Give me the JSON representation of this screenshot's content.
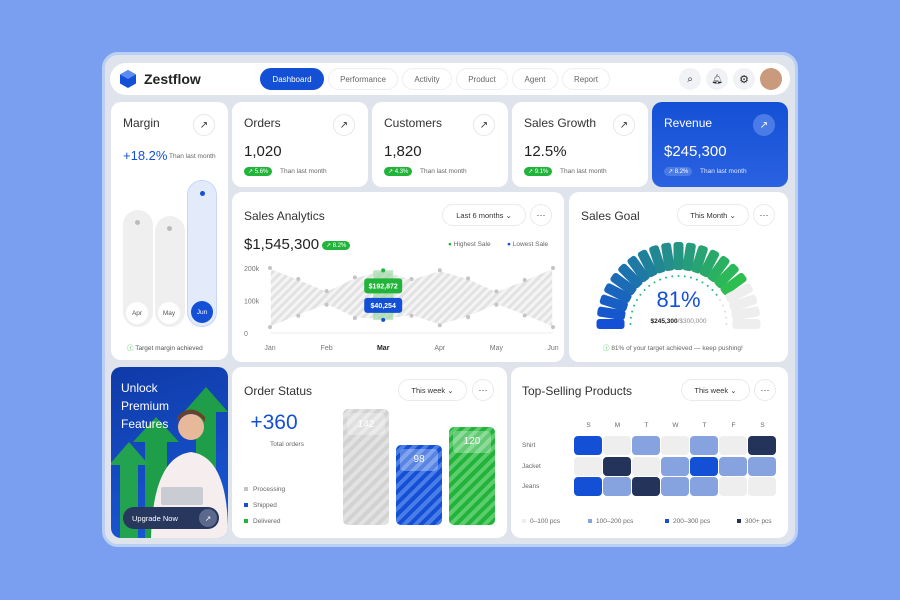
{
  "app": {
    "brand": "Zestflow"
  },
  "nav": {
    "tabs": [
      "Dashboard",
      "Performance",
      "Activity",
      "Product",
      "Agent",
      "Report"
    ],
    "active": "Dashboard"
  },
  "colors": {
    "accent": "#1450d6",
    "green": "#22b43a",
    "dark": "#23335a",
    "lightblue": "#86a3e0",
    "empty": "#eeeeee"
  },
  "margin": {
    "title": "Margin",
    "value": "+18.2%",
    "compare": "Than last month",
    "bars": [
      {
        "label": "Apr",
        "level": 0.78
      },
      {
        "label": "May",
        "level": 0.74
      },
      {
        "label": "Jun",
        "level": 0.98
      }
    ],
    "note": "Target margin achieved"
  },
  "kpis": [
    {
      "title": "Orders",
      "value": "1,020",
      "change": "5.6%",
      "compare": "Than last month"
    },
    {
      "title": "Customers",
      "value": "1,820",
      "change": "4.3%",
      "compare": "Than last month"
    },
    {
      "title": "Sales Growth",
      "value": "12.5%",
      "change": "9.1%",
      "compare": "Than last month"
    },
    {
      "title": "Revenue",
      "value": "$245,300",
      "change": "8.2%",
      "compare": "Than last month"
    }
  ],
  "sales_analytics": {
    "title": "Sales Analytics",
    "period": "Last 6 months",
    "total": "$1,545,300",
    "change": "8.2%",
    "legend": [
      "Highest Sale",
      "Lowest Sale"
    ],
    "y_ticks": [
      "200k",
      "100k",
      "0"
    ],
    "months": [
      "Jan",
      "Feb",
      "Mar",
      "Apr",
      "May",
      "Jun"
    ],
    "selected_month": "Mar",
    "highest_label": "$192,872",
    "lowest_label": "$40,254",
    "chart_data": {
      "type": "area",
      "ylim": [
        0,
        200000
      ],
      "x": [
        "Jan",
        "",
        "Feb",
        "",
        "Mar",
        "",
        "Apr",
        "",
        "May",
        "",
        "Jun"
      ],
      "high": [
        200000,
        166000,
        129000,
        171000,
        192872,
        166000,
        193000,
        168000,
        128000,
        163000,
        200000
      ],
      "low": [
        18000,
        53000,
        87000,
        46000,
        40254,
        53000,
        24000,
        49000,
        87000,
        54000,
        18000
      ]
    }
  },
  "sales_goal": {
    "title": "Sales Goal",
    "period": "This Month",
    "percent": "81%",
    "progress": 0.81,
    "achieved": "$245,300",
    "target": "/$300,000",
    "note": "81% of your target achieved — keep pushing!"
  },
  "promo": {
    "title_lines": [
      "Unlock",
      "Premium",
      "Features"
    ],
    "button": "Upgrade Now"
  },
  "order_status": {
    "title": "Order Status",
    "period": "This week",
    "total": "+360",
    "total_label": "Total orders",
    "legend": [
      "Processing",
      "Shipped",
      "Delivered"
    ],
    "bars": [
      142,
      98,
      120
    ]
  },
  "top_products": {
    "title": "Top-Selling Products",
    "period": "This week",
    "days": [
      "S",
      "M",
      "T",
      "W",
      "T",
      "F",
      "S"
    ],
    "rows": [
      {
        "name": "Shirt",
        "levels": [
          2,
          0,
          1,
          0,
          1,
          0,
          3
        ]
      },
      {
        "name": "Jacket",
        "levels": [
          0,
          3,
          0,
          1,
          2,
          1,
          1
        ]
      },
      {
        "name": "Jeans",
        "levels": [
          2,
          1,
          3,
          1,
          1,
          0,
          0
        ]
      }
    ],
    "legend": [
      "0–100 pcs",
      "100–200 pcs",
      "200–300 pcs",
      "300+ pcs"
    ]
  }
}
